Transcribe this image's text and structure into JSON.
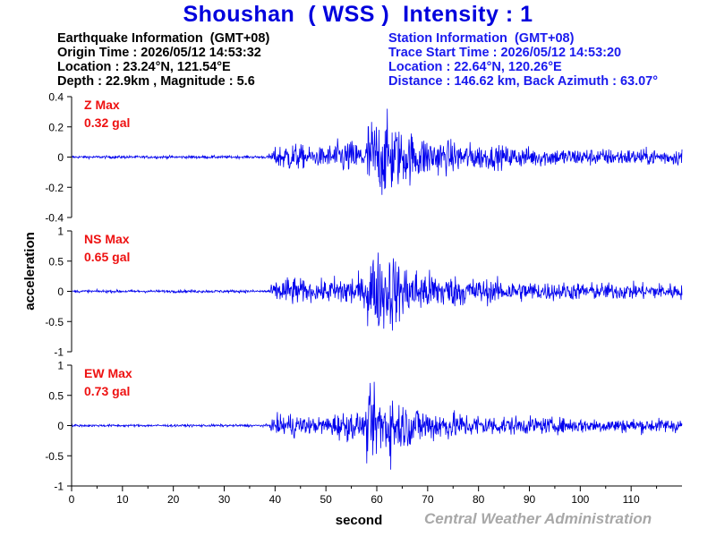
{
  "header": {
    "title": "Shoushan  ( WSS )  Intensity : 1"
  },
  "earthquake_info": {
    "heading": "Earthquake Information  (GMT+08)",
    "origin_time": "Origin Time : 2026/05/12 14:53:32",
    "location": "Location : 23.24°N, 121.54°E",
    "depth_magnitude": "Depth : 22.9km , Magnitude : 5.6"
  },
  "station_info": {
    "heading": "Station Information  (GMT+08)",
    "trace_start": "Trace Start Time : 2026/05/12 14:53:20",
    "location": "Location : 22.64°N, 120.26°E",
    "distance": "Distance : 146.62 km, Back Azimuth : 63.07°"
  },
  "watermark": "Central Weather Administration",
  "colors": {
    "trace": "#0000ee",
    "max_label": "#ee1111",
    "axis": "#000000"
  },
  "chart_data": {
    "type": "line",
    "xlabel": "second",
    "ylabel": "acceleration",
    "xlim": [
      0,
      120
    ],
    "x_ticks": [
      0,
      10,
      20,
      30,
      40,
      50,
      60,
      70,
      80,
      90,
      100,
      110
    ],
    "p_arrival_s": 38.5,
    "s_arrival_s": 58,
    "panels": [
      {
        "id": "z",
        "label": "Z Max",
        "max_value": "0.32 gal",
        "peak": 0.32,
        "ylim": [
          -0.4,
          0.4
        ],
        "y_ticks": [
          0.4,
          0.2,
          0,
          -0.2,
          -0.4
        ],
        "y_tick_labels": [
          "0.4",
          "0.2",
          "0",
          "-0.2",
          "-0.4"
        ]
      },
      {
        "id": "ns",
        "label": "NS Max",
        "max_value": "0.65 gal",
        "peak": 0.65,
        "ylim": [
          -1,
          1
        ],
        "y_ticks": [
          1,
          0.5,
          0,
          -0.5,
          -1
        ],
        "y_tick_labels": [
          "1",
          "0.5",
          "0",
          "-0.5",
          "-1"
        ]
      },
      {
        "id": "ew",
        "label": "EW Max",
        "max_value": "0.73 gal",
        "peak": 0.73,
        "ylim": [
          -1,
          1
        ],
        "y_ticks": [
          1,
          0.5,
          0,
          -0.5,
          -1
        ],
        "y_tick_labels": [
          "1",
          "0.5",
          "0",
          "-0.5",
          "-1"
        ]
      }
    ]
  }
}
